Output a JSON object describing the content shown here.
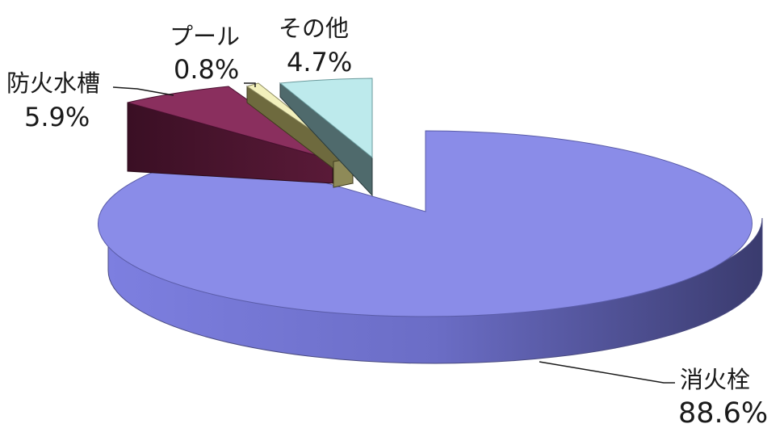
{
  "chart_data": {
    "type": "pie",
    "style": "3d-exploded",
    "title": "",
    "slices": [
      {
        "label": "消火栓",
        "value": 88.6,
        "value_label": "88.6%",
        "color": "#8a8ce8"
      },
      {
        "label": "防火水槽",
        "value": 5.9,
        "value_label": "5.9%",
        "color": "#8a2f5e"
      },
      {
        "label": "プール",
        "value": 0.8,
        "value_label": "0.8%",
        "color": "#f2f0bc"
      },
      {
        "label": "その他",
        "value": 4.7,
        "value_label": "4.7%",
        "color": "#bdeaec"
      }
    ]
  }
}
